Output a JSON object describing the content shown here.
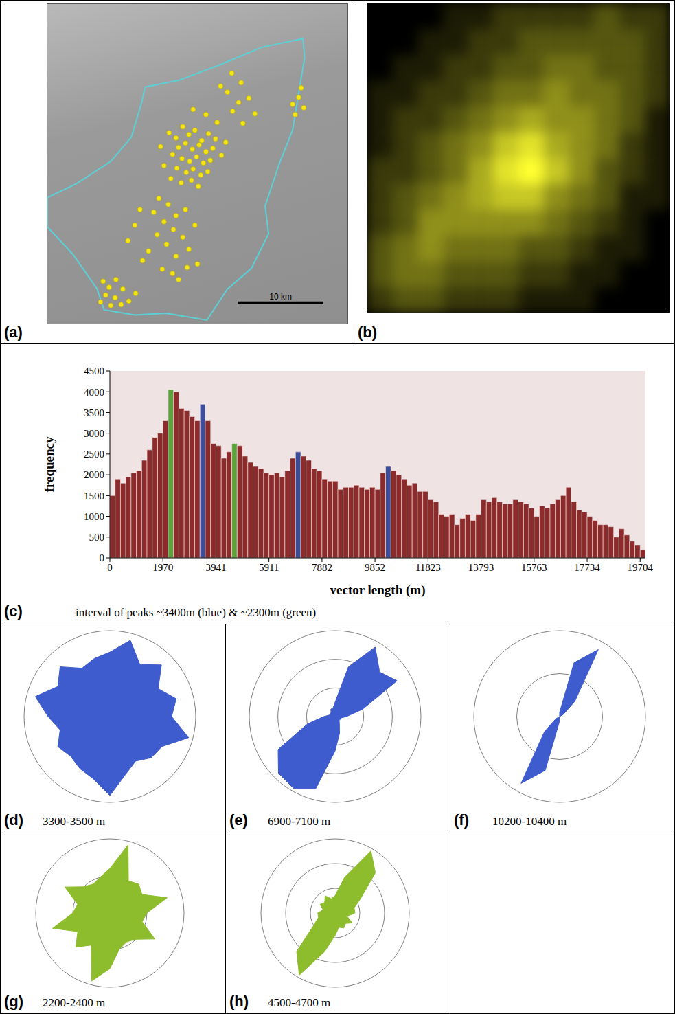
{
  "chart_data": [
    {
      "type": "scatter",
      "panel_label": "(a)",
      "xlim": [
        0,
        35
      ],
      "ylim": [
        0,
        37
      ],
      "tick_labels": false,
      "color": "#f3e516",
      "x": [
        14.2,
        15.0,
        15.8,
        16.5,
        17.2,
        18.0,
        18.8,
        19.6,
        15.3,
        16.1,
        16.9,
        17.7,
        18.5,
        19.3,
        14.6,
        15.7,
        16.6,
        17.4,
        18.2,
        19.0,
        15.1,
        16.2,
        17.0,
        17.9,
        18.7,
        14.4,
        15.6,
        16.8,
        17.6,
        20.3,
        20.8,
        13.6,
        13.2,
        19.8,
        21.6,
        22.3,
        23.5,
        24.2,
        22.8,
        21.0,
        18.5,
        17.0,
        20.2,
        22.6,
        21.5,
        28.6,
        29.3,
        29.9,
        28.9,
        29.6,
        13.0,
        14.1,
        12.4,
        15.0,
        13.6,
        16.1,
        14.7,
        12.8,
        15.8,
        13.9,
        17.2,
        16.5,
        11.8,
        15.0,
        13.4,
        14.6,
        16.3,
        17.5,
        15.3,
        6.5,
        7.2,
        8.0,
        6.8,
        7.9,
        8.8,
        9.5,
        7.4,
        6.2,
        10.3,
        8.6,
        10.2,
        9.4,
        10.8,
        11.1
      ],
      "y": [
        22.1,
        21.5,
        22.8,
        21.9,
        22.4,
        21.2,
        22.0,
        21.4,
        20.4,
        20.9,
        20.2,
        20.7,
        19.9,
        20.3,
        19.6,
        19.1,
        18.8,
        19.3,
        18.6,
        18.9,
        18.0,
        17.5,
        17.9,
        17.2,
        17.6,
        16.8,
        16.3,
        16.6,
        15.9,
        19.5,
        21.0,
        18.3,
        20.5,
        23.3,
        24.6,
        25.6,
        26.1,
        24.3,
        23.2,
        26.8,
        24.2,
        24.8,
        27.5,
        27.9,
        29.0,
        25.4,
        26.2,
        25.0,
        24.2,
        27.3,
        14.5,
        13.8,
        12.9,
        12.5,
        11.8,
        13.2,
        10.9,
        10.3,
        10.0,
        9.2,
        11.4,
        8.6,
        8.4,
        7.8,
        6.3,
        5.8,
        6.5,
        6.9,
        5.1,
        4.9,
        4.2,
        5.1,
        3.3,
        3.0,
        4.0,
        2.6,
        2.1,
        2.5,
        3.5,
        2.2,
        11.4,
        9.6,
        13.2,
        7.3
      ],
      "boundary": {
        "color": "#5cd0d6",
        "x": [
          0,
          3.4,
          7.4,
          9.8,
          11.0,
          11.4,
          15.4,
          20.2,
          25.0,
          29.8,
          30.0,
          29.4,
          28.6,
          27.0,
          25.4,
          25.8,
          23.8,
          21.0,
          18.6,
          13.8,
          10.2,
          6.6,
          5.8,
          3.0,
          0,
          0
        ],
        "y": [
          14.6,
          16.2,
          18.8,
          21.6,
          25.6,
          27.4,
          28.2,
          30.0,
          32.0,
          33.0,
          30.8,
          27.2,
          22.4,
          18.4,
          13.6,
          10.4,
          6.4,
          4.0,
          0.4,
          1.2,
          1.0,
          1.6,
          4.0,
          8.0,
          11.2,
          14.6
        ]
      },
      "scale_bar": {
        "length": 10,
        "label": "10 km"
      }
    },
    {
      "type": "heatmap",
      "panel_label": "(b)",
      "tick_labels": false,
      "color": "#ffff30",
      "zlim": [
        0,
        9
      ],
      "cells": [
        [
          0,
          0,
          0,
          1,
          1,
          2,
          2,
          2,
          2,
          3,
          2,
          2
        ],
        [
          0,
          0,
          1,
          1,
          2,
          2,
          3,
          3,
          3,
          3,
          3,
          2
        ],
        [
          0,
          1,
          1,
          2,
          2,
          3,
          3,
          4,
          4,
          3,
          3,
          2
        ],
        [
          1,
          1,
          2,
          2,
          3,
          4,
          4,
          5,
          4,
          4,
          3,
          2
        ],
        [
          1,
          2,
          2,
          3,
          4,
          5,
          6,
          5,
          5,
          4,
          3,
          1
        ],
        [
          1,
          2,
          3,
          4,
          5,
          7,
          8,
          6,
          5,
          4,
          2,
          1
        ],
        [
          2,
          2,
          3,
          4,
          6,
          8,
          9,
          7,
          5,
          3,
          2,
          1
        ],
        [
          2,
          3,
          4,
          5,
          6,
          7,
          7,
          5,
          4,
          3,
          1,
          1
        ],
        [
          2,
          3,
          5,
          5,
          5,
          5,
          5,
          4,
          3,
          2,
          1,
          0
        ],
        [
          3,
          4,
          5,
          4,
          4,
          4,
          3,
          3,
          2,
          1,
          1,
          0
        ],
        [
          3,
          4,
          4,
          3,
          3,
          3,
          2,
          2,
          1,
          1,
          0,
          0
        ],
        [
          2,
          3,
          3,
          2,
          2,
          2,
          1,
          1,
          1,
          0,
          0,
          0
        ]
      ]
    },
    {
      "type": "histogram",
      "panel_label": "(c)",
      "annotation": "interval of peaks ~3400m (blue) & ~2300m (green)",
      "x_label": "vector length (m)",
      "y_label": "frequency",
      "xlim": [
        0,
        19902
      ],
      "ylim": [
        0,
        4500
      ],
      "xticks": [
        0,
        1970,
        3941,
        5911,
        7882,
        9852,
        11823,
        13793,
        15763,
        17734,
        19704
      ],
      "yticks": [
        0,
        500,
        1000,
        1500,
        2000,
        2500,
        3000,
        3500,
        4000,
        4500
      ],
      "bins": [
        0,
        197,
        394,
        591,
        788,
        985,
        1182,
        1379,
        1576,
        1773,
        1970,
        2167,
        2365,
        2562,
        2759,
        2956,
        3153,
        3350,
        3547,
        3744,
        3941,
        4138,
        4335,
        4532,
        4729,
        4926,
        5123,
        5320,
        5517,
        5714,
        5911,
        6108,
        6305,
        6502,
        6700,
        6897,
        7094,
        7291,
        7488,
        7685,
        7882,
        8079,
        8276,
        8473,
        8670,
        8867,
        9064,
        9261,
        9458,
        9655,
        9852,
        10049,
        10246,
        10443,
        10640,
        10837,
        11035,
        11232,
        11429,
        11626,
        11823,
        12020,
        12217,
        12414,
        12611,
        12808,
        13005,
        13202,
        13399,
        13596,
        13793,
        13990,
        14187,
        14384,
        14581,
        14778,
        14975,
        15172,
        15370,
        15567,
        15764,
        15961,
        16158,
        16355,
        16552,
        16749,
        16946,
        17143,
        17340,
        17537,
        17734,
        17931,
        18128,
        18325,
        18522,
        18719,
        18916,
        19113,
        19310,
        19507,
        19705,
        19902
      ],
      "counts": [
        1500,
        1900,
        1800,
        1950,
        2050,
        2100,
        2350,
        2600,
        2900,
        3000,
        3300,
        4050,
        4000,
        3600,
        3550,
        3400,
        3300,
        3700,
        3300,
        2750,
        2700,
        2400,
        2550,
        2750,
        2700,
        2450,
        2300,
        2200,
        2150,
        2050,
        2000,
        2050,
        1950,
        2100,
        2400,
        2550,
        2450,
        2350,
        2150,
        2100,
        1900,
        1850,
        1850,
        1650,
        1700,
        1700,
        1750,
        1700,
        1650,
        1700,
        1650,
        2050,
        2200,
        2100,
        2000,
        1900,
        1750,
        1800,
        1600,
        1600,
        1400,
        1350,
        1050,
        1000,
        1050,
        800,
        950,
        1050,
        900,
        1050,
        1400,
        1350,
        1450,
        1350,
        1300,
        1300,
        1400,
        1350,
        1300,
        1200,
        1000,
        1250,
        1200,
        1300,
        1400,
        1500,
        1700,
        1350,
        1150,
        1100,
        1000,
        900,
        800,
        800,
        750,
        500,
        700,
        550,
        400,
        300,
        200
      ],
      "colors": [
        "#8b2b2b",
        "#8b2b2b",
        "#8b2b2b",
        "#8b2b2b",
        "#8b2b2b",
        "#8b2b2b",
        "#8b2b2b",
        "#8b2b2b",
        "#8b2b2b",
        "#8b2b2b",
        "#8b2b2b",
        "#5da33b",
        "#8b2b2b",
        "#8b2b2b",
        "#8b2b2b",
        "#8b2b2b",
        "#8b2b2b",
        "#3d4d99",
        "#8b2b2b",
        "#8b2b2b",
        "#8b2b2b",
        "#8b2b2b",
        "#8b2b2b",
        "#5da33b",
        "#8b2b2b",
        "#8b2b2b",
        "#8b2b2b",
        "#8b2b2b",
        "#8b2b2b",
        "#8b2b2b",
        "#8b2b2b",
        "#8b2b2b",
        "#8b2b2b",
        "#8b2b2b",
        "#8b2b2b",
        "#3d4d99",
        "#8b2b2b",
        "#8b2b2b",
        "#8b2b2b",
        "#8b2b2b",
        "#8b2b2b",
        "#8b2b2b",
        "#8b2b2b",
        "#8b2b2b",
        "#8b2b2b",
        "#8b2b2b",
        "#8b2b2b",
        "#8b2b2b",
        "#8b2b2b",
        "#8b2b2b",
        "#8b2b2b",
        "#8b2b2b",
        "#3d4d99",
        "#8b2b2b",
        "#8b2b2b",
        "#8b2b2b",
        "#8b2b2b",
        "#8b2b2b",
        "#8b2b2b",
        "#8b2b2b",
        "#8b2b2b",
        "#8b2b2b",
        "#8b2b2b",
        "#8b2b2b",
        "#8b2b2b",
        "#8b2b2b",
        "#8b2b2b",
        "#8b2b2b",
        "#8b2b2b",
        "#8b2b2b",
        "#8b2b2b",
        "#8b2b2b",
        "#8b2b2b",
        "#8b2b2b",
        "#8b2b2b",
        "#8b2b2b",
        "#8b2b2b",
        "#8b2b2b",
        "#8b2b2b",
        "#8b2b2b",
        "#8b2b2b",
        "#8b2b2b",
        "#8b2b2b",
        "#8b2b2b",
        "#8b2b2b",
        "#8b2b2b",
        "#8b2b2b",
        "#8b2b2b",
        "#8b2b2b",
        "#8b2b2b",
        "#8b2b2b",
        "#8b2b2b",
        "#8b2b2b",
        "#8b2b2b",
        "#8b2b2b",
        "#8b2b2b",
        "#8b2b2b",
        "#8b2b2b",
        "#8b2b2b",
        "#8b2b2b",
        "#8b2b2b"
      ]
    },
    {
      "type": "radar",
      "panel_label": "(d)",
      "annotation": "3300-3500 m",
      "color": "#3f5ccf",
      "tick_labels": false,
      "rlim": [
        0,
        1
      ],
      "rticks": [
        1
      ],
      "directions": [
        0,
        15,
        30,
        45,
        60,
        75,
        90,
        105,
        120,
        135,
        150,
        165,
        180,
        195,
        210,
        225,
        240,
        255,
        270,
        285,
        300,
        315,
        330,
        345
      ],
      "values": [
        0.75,
        0.92,
        0.7,
        0.85,
        0.65,
        0.8,
        0.72,
        0.95,
        0.7,
        0.68,
        0.6,
        0.7,
        0.92,
        0.75,
        0.7,
        0.65,
        0.7,
        0.6,
        0.72,
        0.9,
        0.7,
        0.82,
        0.65,
        0.7
      ]
    },
    {
      "type": "radar",
      "panel_label": "(e)",
      "annotation": "6900-7100 m",
      "color": "#3f5ccf",
      "tick_labels": false,
      "rlim": [
        0,
        3
      ],
      "rticks": [
        1,
        2,
        3
      ],
      "directions": [
        0,
        15,
        30,
        45,
        60,
        75,
        90,
        105,
        120,
        135,
        150,
        165,
        180,
        195,
        210,
        225,
        240,
        255,
        270,
        285,
        300,
        315,
        330,
        345
      ],
      "values": [
        0.5,
        1.8,
        2.8,
        2.2,
        2.5,
        1.0,
        0.4,
        0.2,
        0.2,
        0.2,
        0.3,
        0.6,
        1.2,
        2.6,
        2.9,
        2.8,
        2.3,
        1.0,
        0.4,
        0.2,
        0.2,
        0.2,
        0.3,
        0.3
      ]
    },
    {
      "type": "radar",
      "panel_label": "(f)",
      "annotation": "10200-10400 m",
      "color": "#3f5ccf",
      "tick_labels": false,
      "rlim": [
        0,
        2
      ],
      "rticks": [
        1,
        2
      ],
      "directions": [
        0,
        15,
        30,
        45,
        60,
        75,
        90,
        105,
        120,
        135,
        150,
        165,
        180,
        195,
        210,
        225,
        240,
        255,
        270,
        285,
        300,
        315,
        330,
        345
      ],
      "values": [
        0.1,
        1.3,
        1.8,
        0.5,
        0.1,
        0,
        0,
        0,
        0,
        0,
        0,
        0,
        0.1,
        1.3,
        1.8,
        0.5,
        0.1,
        0,
        0,
        0,
        0,
        0,
        0,
        0
      ]
    },
    {
      "type": "radar",
      "panel_label": "(g)",
      "annotation": "2200-2400 m",
      "color": "#8dbd2d",
      "tick_labels": false,
      "rlim": [
        0,
        2
      ],
      "rticks": [
        1,
        2
      ],
      "directions": [
        0,
        15,
        30,
        45,
        60,
        75,
        90,
        105,
        120,
        135,
        150,
        165,
        180,
        195,
        210,
        225,
        240,
        255,
        270,
        285,
        300,
        315,
        330,
        345
      ],
      "values": [
        1.2,
        1.9,
        1.0,
        1.1,
        1.0,
        1.6,
        1.0,
        0.9,
        1.4,
        1.0,
        0.9,
        1.0,
        1.5,
        1.9,
        1.0,
        1.3,
        1.0,
        1.6,
        1.0,
        0.9,
        1.4,
        1.0,
        0.9,
        1.0
      ]
    },
    {
      "type": "radar",
      "panel_label": "(h)",
      "annotation": "4500-4700 m",
      "color": "#8dbd2d",
      "tick_labels": false,
      "rlim": [
        0,
        3
      ],
      "rticks": [
        1,
        2,
        3
      ],
      "directions": [
        0,
        15,
        30,
        45,
        60,
        75,
        90,
        105,
        120,
        135,
        150,
        165,
        180,
        195,
        210,
        225,
        240,
        255,
        270,
        285,
        300,
        315,
        330,
        345
      ],
      "values": [
        0.7,
        1.5,
        2.9,
        2.3,
        1.2,
        0.8,
        0.8,
        0.5,
        0.8,
        0.6,
        0.7,
        0.6,
        0.9,
        1.6,
        2.9,
        2.2,
        1.0,
        0.7,
        0.7,
        0.5,
        0.7,
        0.6,
        0.8,
        0.6
      ]
    }
  ]
}
